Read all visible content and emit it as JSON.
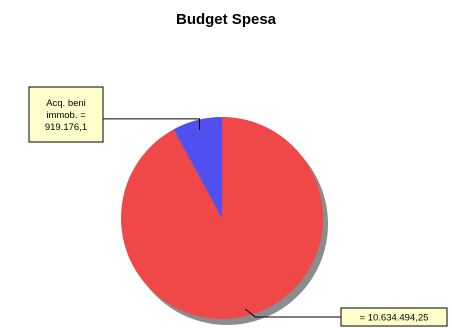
{
  "chart_data": {
    "type": "pie",
    "title": "Budget Spesa",
    "slices": [
      {
        "label": "",
        "value": 10634494.25,
        "display_lines": [
          "= 10.634.494,25"
        ],
        "color": "#f04848"
      },
      {
        "label": "Acq. beni immob.",
        "value": 919176.1,
        "display_lines": [
          "Acq. beni",
          "immob. =",
          "919.176,1"
        ],
        "color": "#5050f0"
      }
    ],
    "start_angle_deg": 0,
    "direction": "clockwise",
    "legend": "none",
    "shadow": true,
    "callout_box_color": "#ffffcc",
    "shadow_color": "#8c8c8c"
  }
}
